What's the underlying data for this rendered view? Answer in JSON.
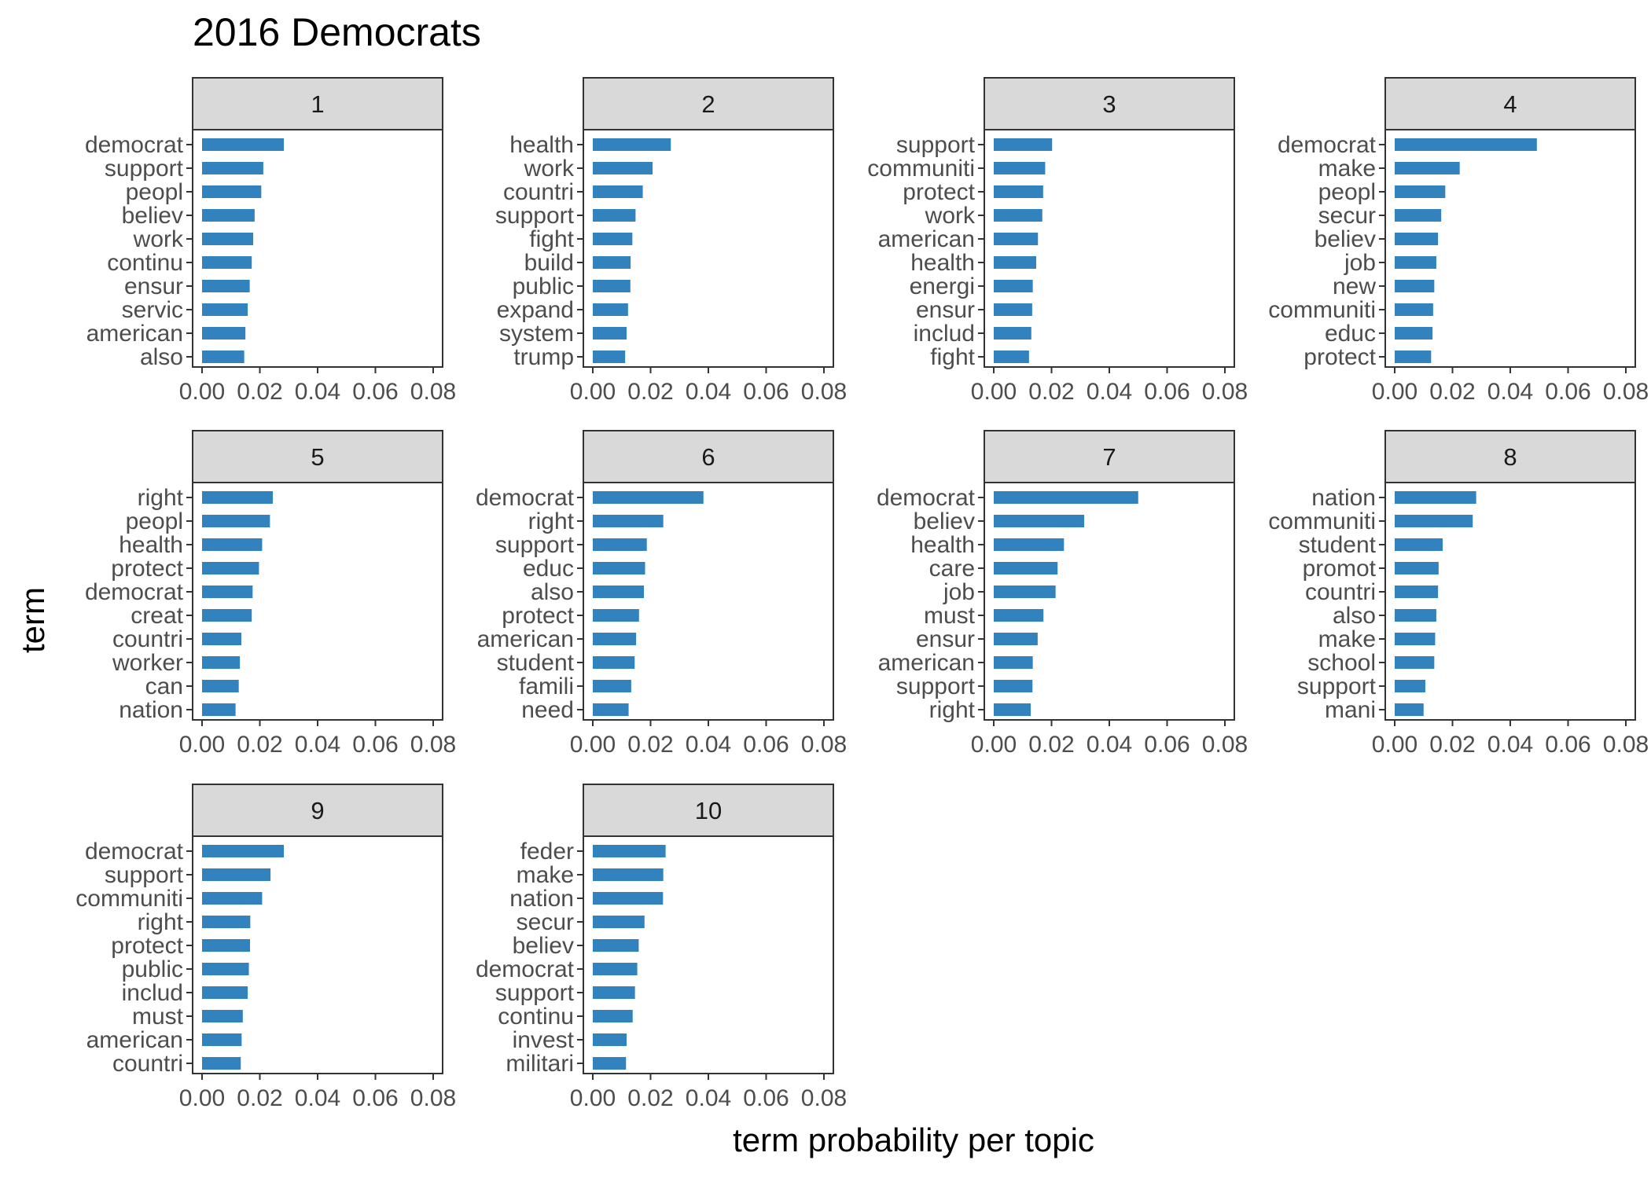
{
  "chart_data": {
    "type": "bar",
    "orientation": "horizontal",
    "faceted": true,
    "title": "2016 Democrats",
    "xlabel": "term probability per topic",
    "ylabel": "term",
    "xlim": [
      0,
      0.08
    ],
    "xticks": [
      "0.00",
      "0.02",
      "0.04",
      "0.06",
      "0.08"
    ],
    "grid": false,
    "legend": "none",
    "bar_color": "#3182BD",
    "strip_fill": "#D9D9D9",
    "panels": [
      {
        "topic": "1",
        "terms": [
          "democrat",
          "support",
          "peopl",
          "believ",
          "work",
          "continu",
          "ensur",
          "servic",
          "american",
          "also"
        ],
        "values": [
          0.0283,
          0.0212,
          0.0205,
          0.0182,
          0.0177,
          0.0172,
          0.0165,
          0.0158,
          0.015,
          0.0146
        ]
      },
      {
        "topic": "2",
        "terms": [
          "health",
          "work",
          "countri",
          "support",
          "fight",
          "build",
          "public",
          "expand",
          "system",
          "trump"
        ],
        "values": [
          0.027,
          0.0207,
          0.0173,
          0.0148,
          0.0137,
          0.0131,
          0.013,
          0.0122,
          0.0117,
          0.0112
        ]
      },
      {
        "topic": "3",
        "terms": [
          "support",
          "communiti",
          "protect",
          "work",
          "american",
          "health",
          "energi",
          "ensur",
          "includ",
          "fight"
        ],
        "values": [
          0.0202,
          0.0178,
          0.0171,
          0.0168,
          0.0153,
          0.0147,
          0.0135,
          0.0133,
          0.013,
          0.0122
        ]
      },
      {
        "topic": "4",
        "terms": [
          "democrat",
          "make",
          "peopl",
          "secur",
          "believ",
          "job",
          "new",
          "communiti",
          "educ",
          "protect"
        ],
        "values": [
          0.0492,
          0.0225,
          0.0175,
          0.0161,
          0.015,
          0.0144,
          0.0137,
          0.0133,
          0.0131,
          0.0126
        ]
      },
      {
        "topic": "5",
        "terms": [
          "right",
          "peopl",
          "health",
          "protect",
          "democrat",
          "creat",
          "countri",
          "worker",
          "can",
          "nation"
        ],
        "values": [
          0.0245,
          0.0235,
          0.0208,
          0.0197,
          0.0175,
          0.0172,
          0.0136,
          0.0131,
          0.0127,
          0.0116
        ]
      },
      {
        "topic": "6",
        "terms": [
          "democrat",
          "right",
          "support",
          "educ",
          "also",
          "protect",
          "american",
          "student",
          "famili",
          "need"
        ],
        "values": [
          0.0383,
          0.0244,
          0.0187,
          0.0181,
          0.0177,
          0.016,
          0.015,
          0.0145,
          0.0133,
          0.0124
        ]
      },
      {
        "topic": "7",
        "terms": [
          "democrat",
          "believ",
          "health",
          "care",
          "job",
          "must",
          "ensur",
          "american",
          "support",
          "right"
        ],
        "values": [
          0.05,
          0.0313,
          0.0243,
          0.0221,
          0.0214,
          0.0172,
          0.0152,
          0.0135,
          0.0134,
          0.0128
        ]
      },
      {
        "topic": "8",
        "terms": [
          "nation",
          "communiti",
          "student",
          "promot",
          "countri",
          "also",
          "make",
          "school",
          "support",
          "mani"
        ],
        "values": [
          0.0282,
          0.027,
          0.0166,
          0.0152,
          0.015,
          0.0144,
          0.014,
          0.0137,
          0.0106,
          0.01
        ]
      },
      {
        "topic": "9",
        "terms": [
          "democrat",
          "support",
          "communiti",
          "right",
          "protect",
          "public",
          "includ",
          "must",
          "american",
          "countri"
        ],
        "values": [
          0.0283,
          0.0237,
          0.0208,
          0.0167,
          0.0166,
          0.0162,
          0.0158,
          0.0141,
          0.0137,
          0.0134
        ]
      },
      {
        "topic": "10",
        "terms": [
          "feder",
          "make",
          "nation",
          "secur",
          "believ",
          "democrat",
          "support",
          "continu",
          "invest",
          "militari"
        ],
        "values": [
          0.0252,
          0.0244,
          0.0243,
          0.0179,
          0.0159,
          0.0154,
          0.0146,
          0.0138,
          0.0117,
          0.0115
        ]
      }
    ]
  }
}
